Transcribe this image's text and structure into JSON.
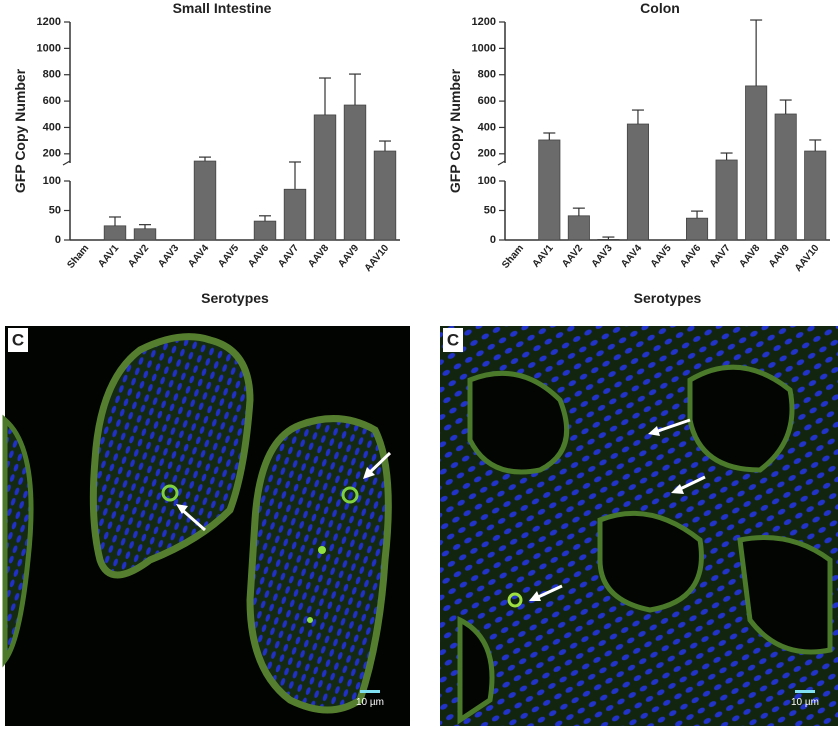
{
  "chart_data": [
    {
      "type": "bar",
      "title": "Small  Intestine",
      "ylabel": "GFP Copy Number",
      "xlabel": "Serotypes",
      "categories": [
        "Sham",
        "AAV1",
        "AAV2",
        "AAV3",
        "AAV4",
        "AAV5",
        "AAV6",
        "AAV7",
        "AAV8",
        "AAV9",
        "AAV10"
      ],
      "values": [
        0,
        24,
        19,
        0,
        145,
        0,
        32,
        86,
        495,
        570,
        221
      ],
      "errors": [
        null,
        15,
        7,
        null,
        30,
        null,
        9,
        52,
        280,
        235,
        76
      ],
      "color": "#6b6b6b",
      "ylim": [
        0,
        1200
      ],
      "ybreak": 100,
      "yticks": [
        0,
        50,
        100,
        200,
        400,
        600,
        800,
        1000,
        1200
      ]
    },
    {
      "type": "bar",
      "title": "Colon",
      "ylabel": "GFP Copy Number",
      "xlabel": "Serotypes",
      "categories": [
        "Sham",
        "AAV1",
        "AAV2",
        "AAV3",
        "AAV4",
        "AAV5",
        "AAV6",
        "AAV7",
        "AAV8",
        "AAV9",
        "AAV10"
      ],
      "values": [
        0,
        305,
        41,
        1,
        426,
        0,
        37,
        153,
        715,
        502,
        221
      ],
      "errors": [
        null,
        53,
        13,
        4,
        106,
        null,
        12,
        53,
        500,
        106,
        84
      ],
      "color": "#6b6b6b",
      "ylim": [
        0,
        1200
      ],
      "ybreak": 100,
      "yticks": [
        0,
        50,
        100,
        200,
        400,
        600,
        800,
        1000,
        1200
      ]
    }
  ],
  "panels": [
    {
      "label": "C",
      "scale_bar": "10 µm"
    },
    {
      "label": "C",
      "scale_bar": "10 µm"
    }
  ]
}
